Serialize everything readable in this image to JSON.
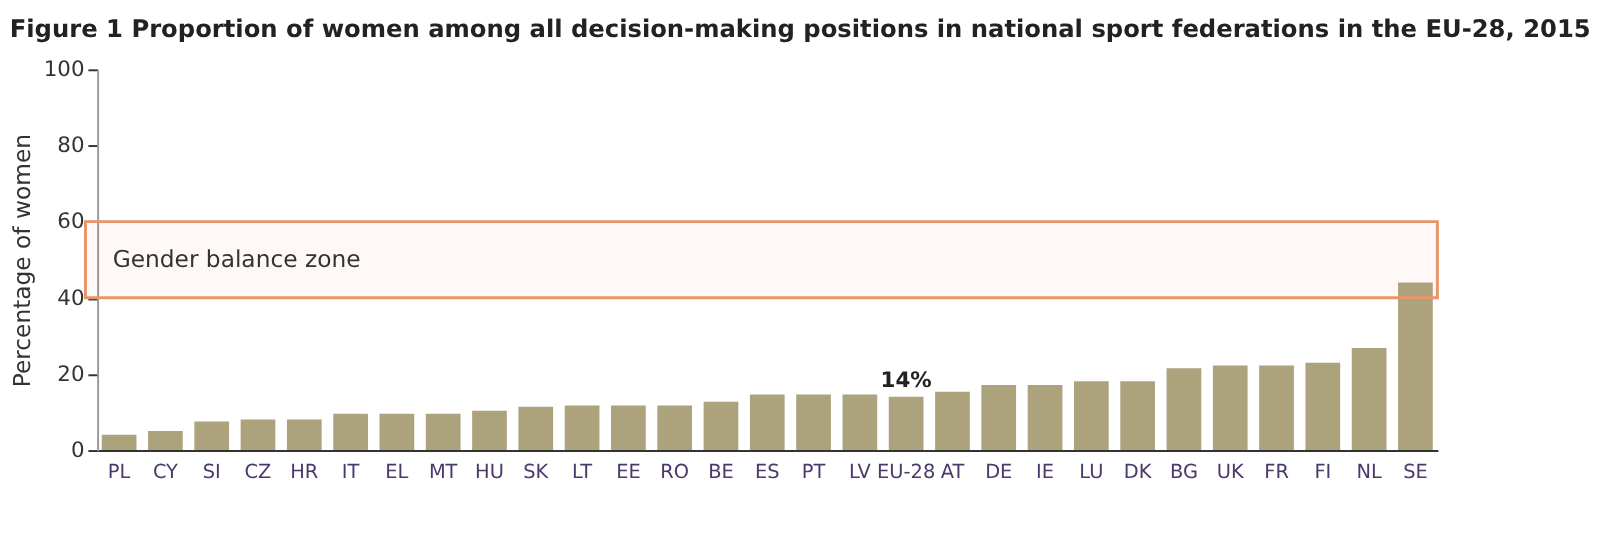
{
  "chart_data": {
    "type": "bar",
    "title": "Figure 1   Proportion of women among all decision-making positions in national sport federations in the EU-28, 2015",
    "ylabel": "Percentage of women",
    "categories": [
      "PL",
      "CY",
      "SI",
      "CZ",
      "HR",
      "IT",
      "EL",
      "MT",
      "HU",
      "SK",
      "LT",
      "EE",
      "RO",
      "BE",
      "ES",
      "PT",
      "LV",
      "EU-28",
      "AT",
      "DE",
      "IE",
      "LU",
      "DK",
      "BG",
      "UK",
      "FR",
      "FI",
      "NL",
      "SE"
    ],
    "values": [
      4,
      5,
      7.5,
      8,
      8,
      9.5,
      9.5,
      9.5,
      10.3,
      11.4,
      11.7,
      11.7,
      11.7,
      12.7,
      14.6,
      14.6,
      14.6,
      14,
      15.3,
      17.1,
      17.1,
      18.1,
      18.1,
      21.5,
      22.2,
      22.2,
      22.9,
      26.8,
      44
    ],
    "value_labels": [
      null,
      null,
      null,
      null,
      null,
      null,
      null,
      null,
      null,
      null,
      null,
      null,
      null,
      null,
      null,
      null,
      null,
      "14%",
      null,
      null,
      null,
      null,
      null,
      null,
      null,
      null,
      null,
      null,
      null
    ],
    "color": "#aca27c",
    "ylim": [
      0,
      100
    ],
    "yticks": [
      0,
      20,
      40,
      60,
      80,
      100
    ],
    "grid": false,
    "bands": [
      {
        "axis": "y",
        "from": 40,
        "to": 60,
        "label": "Gender balance zone",
        "color": "#e8956a"
      }
    ]
  }
}
